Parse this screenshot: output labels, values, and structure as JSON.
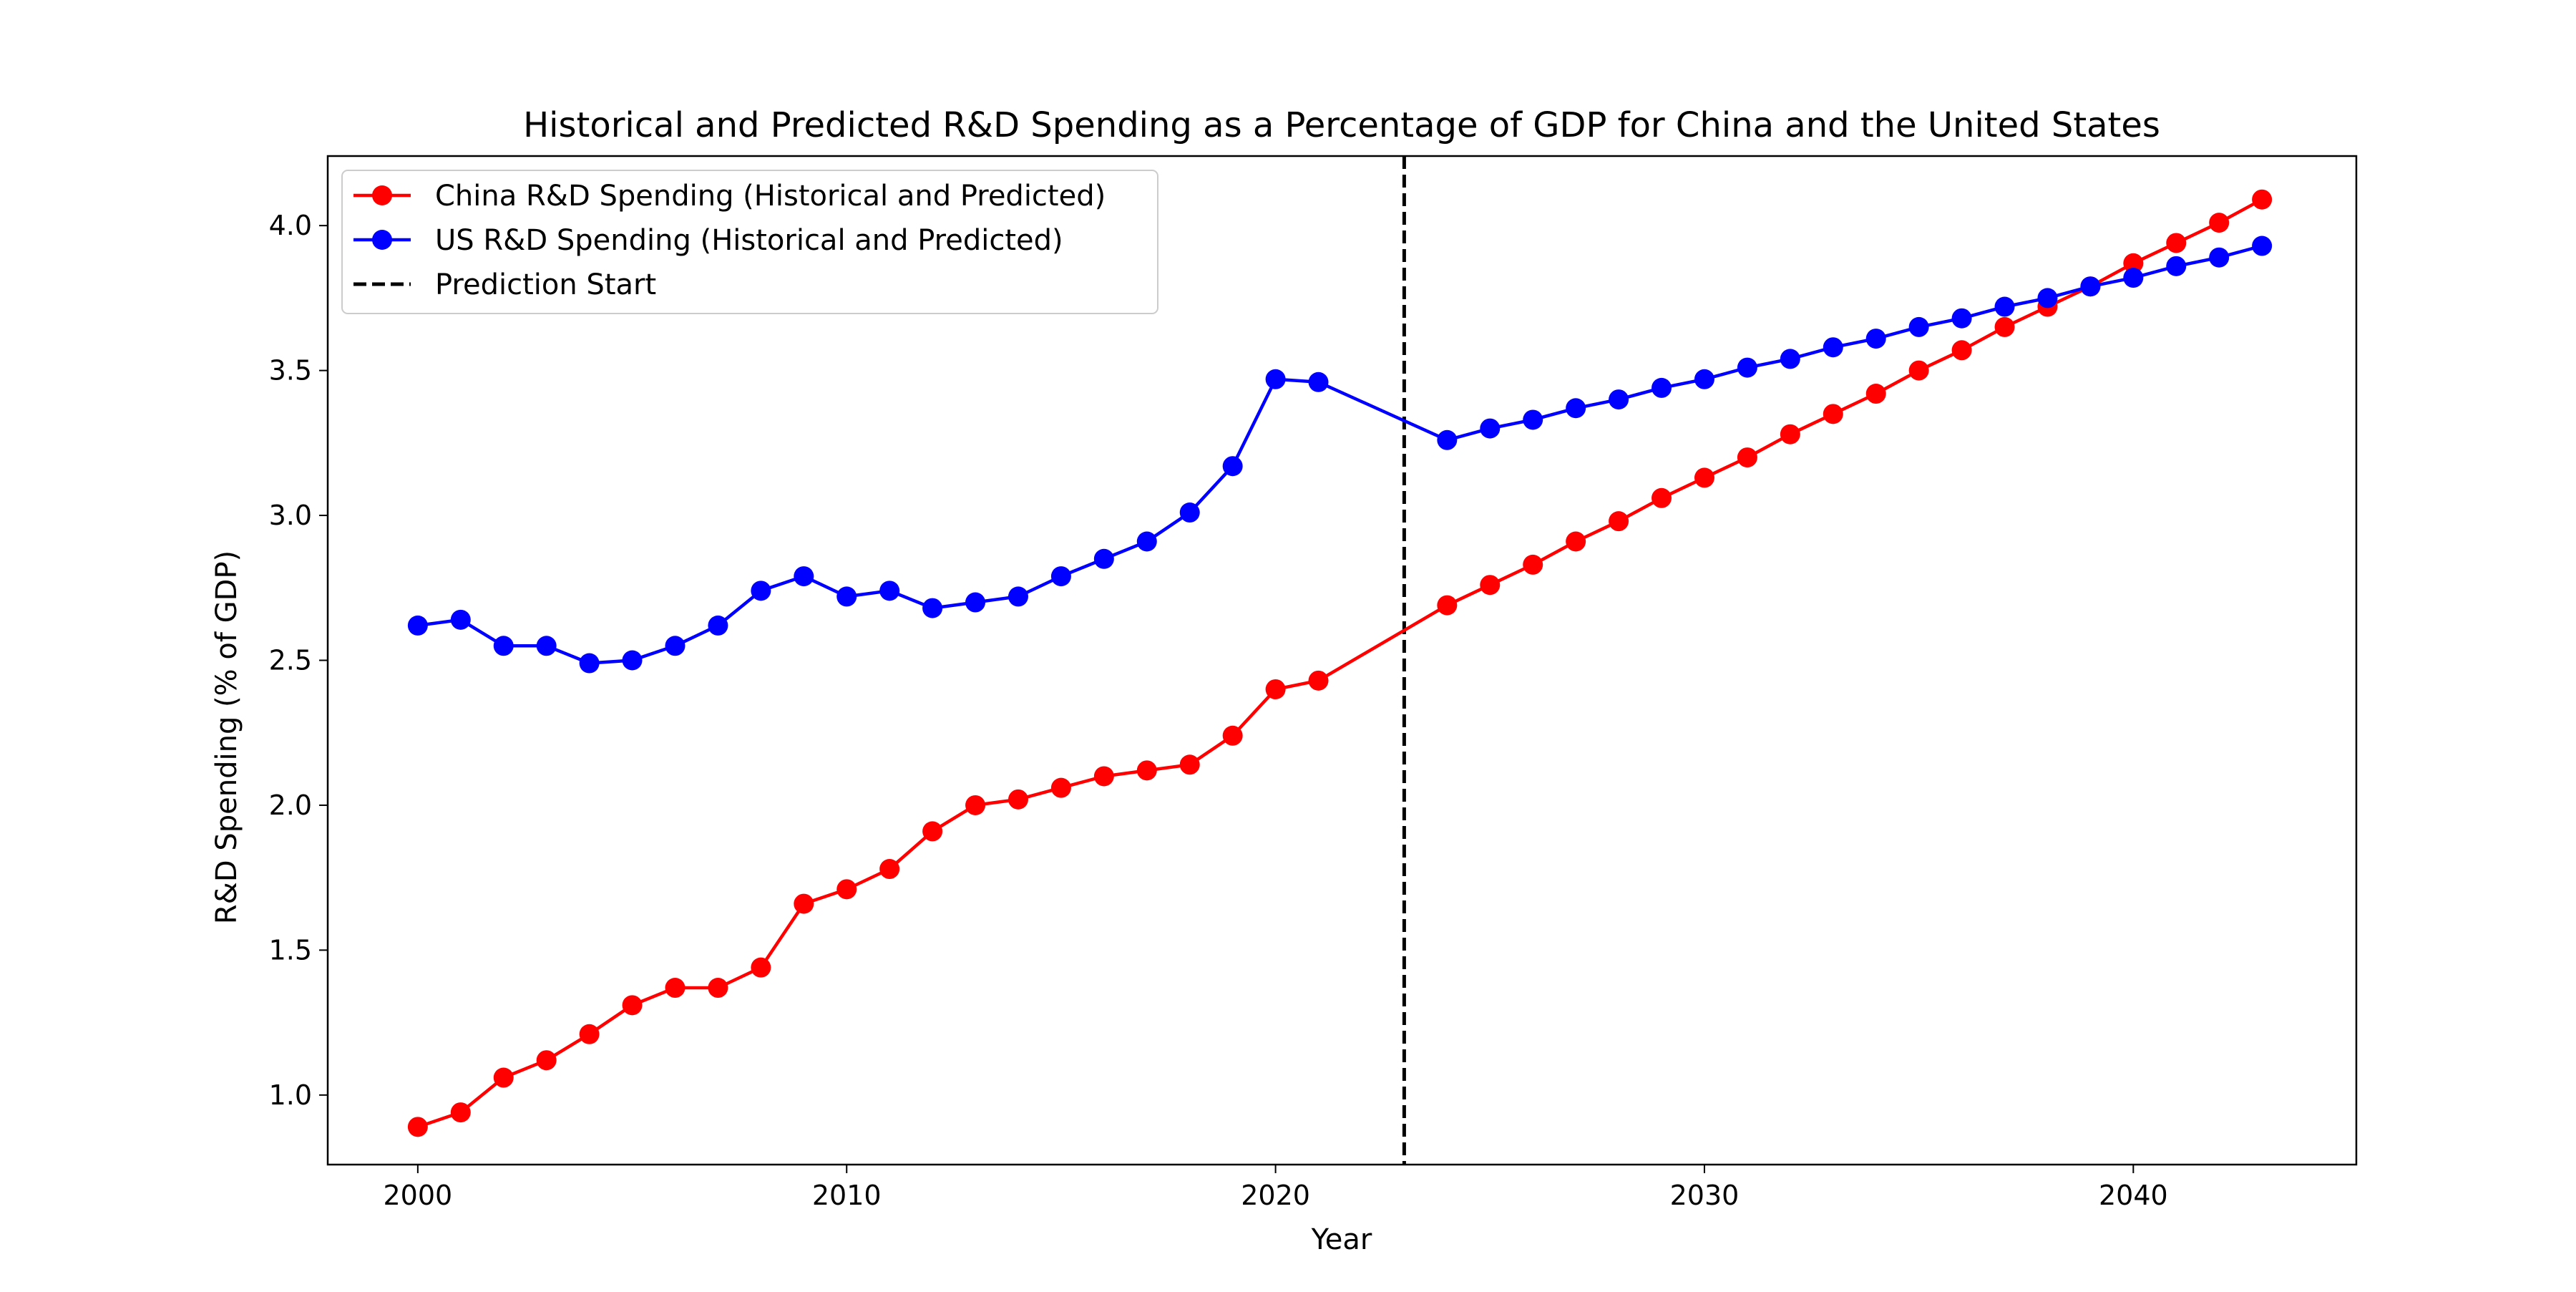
{
  "chart_data": {
    "type": "line",
    "title": "Historical and Predicted R&D Spending as a Percentage of GDP for China and the United States",
    "xlabel": "Year",
    "ylabel": "R&D Spending (% of GDP)",
    "xlim": [
      1997.9,
      2045.2
    ],
    "ylim": [
      0.76,
      4.24
    ],
    "xticks": [
      2000,
      2010,
      2020,
      2030,
      2040
    ],
    "yticks": [
      1.0,
      1.5,
      2.0,
      2.5,
      3.0,
      3.5,
      4.0
    ],
    "grid": false,
    "legend_position": "upper left",
    "vline": {
      "x": 2023,
      "label": "Prediction Start",
      "color": "#000000",
      "style": "dashed"
    },
    "series": [
      {
        "name": "China R&D Spending (Historical and Predicted)",
        "color": "#ff0000",
        "x": [
          2000,
          2001,
          2002,
          2003,
          2004,
          2005,
          2006,
          2007,
          2008,
          2009,
          2010,
          2011,
          2012,
          2013,
          2014,
          2015,
          2016,
          2017,
          2018,
          2019,
          2020,
          2021,
          2024,
          2025,
          2026,
          2027,
          2028,
          2029,
          2030,
          2031,
          2032,
          2033,
          2034,
          2035,
          2036,
          2037,
          2038,
          2039,
          2040,
          2041,
          2042,
          2043
        ],
        "y": [
          0.89,
          0.94,
          1.06,
          1.12,
          1.21,
          1.31,
          1.37,
          1.37,
          1.44,
          1.66,
          1.71,
          1.78,
          1.91,
          2.0,
          2.02,
          2.06,
          2.1,
          2.12,
          2.14,
          2.24,
          2.4,
          2.43,
          2.69,
          2.76,
          2.83,
          2.91,
          2.98,
          3.06,
          3.13,
          3.2,
          3.28,
          3.35,
          3.42,
          3.5,
          3.57,
          3.65,
          3.72,
          3.79,
          3.87,
          3.94,
          4.01,
          4.09
        ]
      },
      {
        "name": "US R&D Spending (Historical and Predicted)",
        "color": "#0000ff",
        "x": [
          2000,
          2001,
          2002,
          2003,
          2004,
          2005,
          2006,
          2007,
          2008,
          2009,
          2010,
          2011,
          2012,
          2013,
          2014,
          2015,
          2016,
          2017,
          2018,
          2019,
          2020,
          2021,
          2024,
          2025,
          2026,
          2027,
          2028,
          2029,
          2030,
          2031,
          2032,
          2033,
          2034,
          2035,
          2036,
          2037,
          2038,
          2039,
          2040,
          2041,
          2042,
          2043
        ],
        "y": [
          2.62,
          2.64,
          2.55,
          2.55,
          2.49,
          2.5,
          2.55,
          2.62,
          2.74,
          2.79,
          2.72,
          2.74,
          2.68,
          2.7,
          2.72,
          2.79,
          2.85,
          2.91,
          3.01,
          3.17,
          3.47,
          3.46,
          3.26,
          3.3,
          3.33,
          3.37,
          3.4,
          3.44,
          3.47,
          3.51,
          3.54,
          3.58,
          3.61,
          3.65,
          3.68,
          3.72,
          3.75,
          3.79,
          3.82,
          3.86,
          3.89,
          3.93
        ]
      }
    ]
  }
}
